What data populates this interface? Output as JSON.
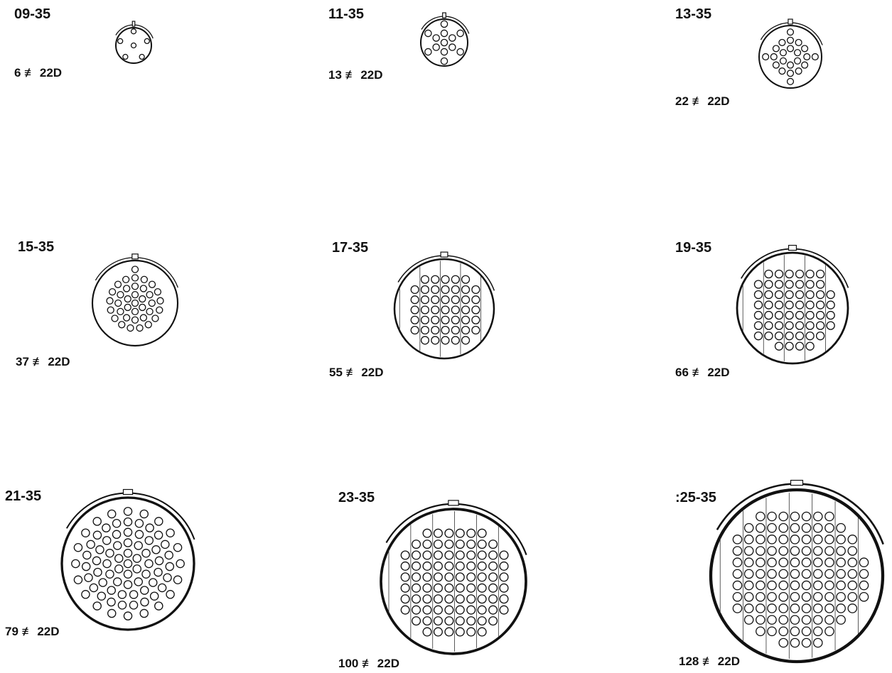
{
  "connectors": [
    {
      "id": "c09",
      "code": "09-35",
      "contacts": "6 ≢ 22D",
      "contact_count": 6
    },
    {
      "id": "c11",
      "code": "11-35",
      "contacts": "13 ≢ 22D",
      "contact_count": 13
    },
    {
      "id": "c13",
      "code": "13-35",
      "contacts": "22 ≢ 22D",
      "contact_count": 22
    },
    {
      "id": "c15",
      "code": "15-35",
      "contacts": "37 ≢ 22D",
      "contact_count": 37
    },
    {
      "id": "c17",
      "code": "17-35",
      "contacts": "55 ≢ 22D",
      "contact_count": 55
    },
    {
      "id": "c19",
      "code": "19-35",
      "contacts": "66 ≢ 22D",
      "contact_count": 66
    },
    {
      "id": "c21",
      "code": "21-35",
      "contacts": "79 ≢ 22D",
      "contact_count": 79
    },
    {
      "id": "c23",
      "code": "23-35",
      "contacts": "100 ≢ 22D",
      "contact_count": 100
    },
    {
      "id": "c25",
      "code": ":25-35",
      "contacts": "128 ≢ 22D",
      "contact_count": 128
    }
  ]
}
